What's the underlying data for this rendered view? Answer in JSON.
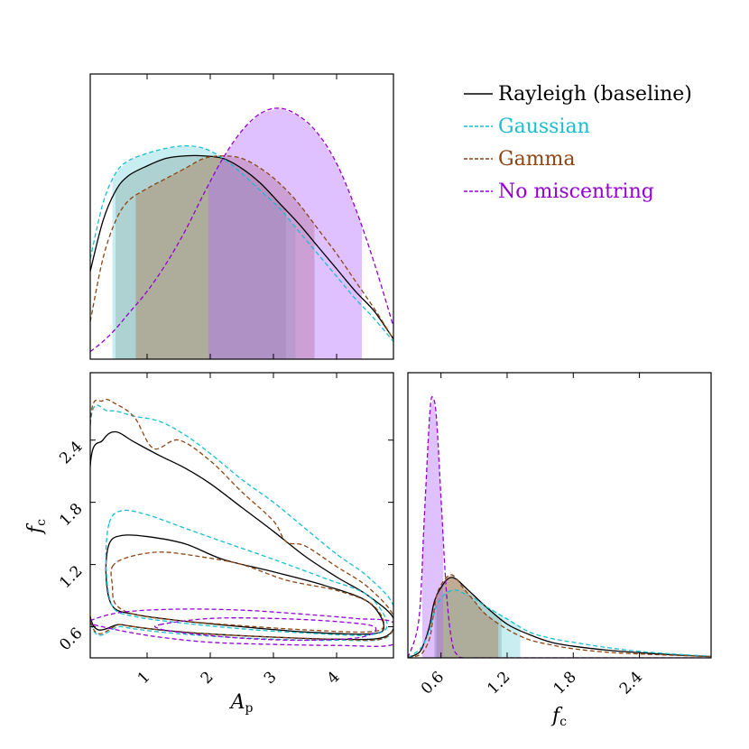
{
  "chart_data": {
    "type": "corner",
    "legend": {
      "placement": "top-right",
      "entries": [
        {
          "name": "Rayleigh (baseline)",
          "color": "#000000",
          "dash": "solid"
        },
        {
          "name": "Gaussian",
          "color": "#17becf",
          "dash": "dashed"
        },
        {
          "name": "Gamma",
          "color": "#8c4513",
          "dash": "dashed"
        },
        {
          "name": "No miscentring",
          "color": "#9400d3",
          "dash": "dashed"
        }
      ]
    },
    "axes": {
      "Ap": {
        "label": "A",
        "label_sub": "p",
        "lim": [
          0.1,
          4.9
        ],
        "ticks": [
          1,
          2,
          3,
          4
        ],
        "tick_labels": [
          "1",
          "2",
          "3",
          "4"
        ]
      },
      "fc": {
        "label": "f",
        "label_sub": "c",
        "lim": [
          0.3,
          3.05
        ],
        "ticks": [
          0.6,
          1.2,
          1.8,
          2.4
        ],
        "tick_labels": [
          "0.6",
          "1.2",
          "1.8",
          "2.4"
        ]
      }
    },
    "marginal_Ap": {
      "x": [
        0.1,
        0.3,
        0.5,
        0.7,
        1.0,
        1.3,
        1.6,
        1.9,
        2.2,
        2.5,
        2.8,
        3.1,
        3.4,
        3.7,
        4.0,
        4.3,
        4.6,
        4.9
      ],
      "series": [
        {
          "name": "Rayleigh (baseline)",
          "y": [
            0.35,
            0.55,
            0.67,
            0.73,
            0.77,
            0.8,
            0.81,
            0.81,
            0.8,
            0.76,
            0.7,
            0.62,
            0.54,
            0.45,
            0.36,
            0.27,
            0.19,
            0.08
          ],
          "hpd": [
            0.5,
            3.2
          ]
        },
        {
          "name": "Gaussian",
          "y": [
            0.4,
            0.62,
            0.74,
            0.79,
            0.82,
            0.84,
            0.85,
            0.84,
            0.8,
            0.74,
            0.67,
            0.6,
            0.51,
            0.42,
            0.33,
            0.24,
            0.16,
            0.07
          ],
          "hpd": [
            0.45,
            3.35
          ]
        },
        {
          "name": "Gamma",
          "y": [
            0.15,
            0.4,
            0.55,
            0.63,
            0.68,
            0.72,
            0.76,
            0.8,
            0.81,
            0.8,
            0.76,
            0.7,
            0.62,
            0.52,
            0.42,
            0.31,
            0.2,
            0.08
          ],
          "hpd": [
            0.82,
            3.65
          ]
        },
        {
          "name": "No miscentring",
          "y": [
            0.03,
            0.07,
            0.12,
            0.18,
            0.27,
            0.38,
            0.51,
            0.66,
            0.8,
            0.91,
            0.98,
            1.0,
            0.97,
            0.9,
            0.78,
            0.6,
            0.38,
            0.13
          ],
          "hpd": [
            1.97,
            4.4
          ]
        }
      ]
    },
    "marginal_fc": {
      "x": [
        0.3,
        0.4,
        0.45,
        0.5,
        0.53,
        0.56,
        0.6,
        0.65,
        0.7,
        0.75,
        0.8,
        0.9,
        1.0,
        1.2,
        1.4,
        1.6,
        1.8,
        2.1,
        2.4,
        2.7,
        3.05
      ],
      "series": [
        {
          "name": "Rayleigh (baseline)",
          "y": [
            0.0,
            0.02,
            0.06,
            0.13,
            0.2,
            0.24,
            0.27,
            0.3,
            0.31,
            0.3,
            0.28,
            0.24,
            0.2,
            0.13,
            0.09,
            0.06,
            0.045,
            0.03,
            0.02,
            0.012,
            0.005
          ],
          "hpd": [
            0.54,
            1.15
          ]
        },
        {
          "name": "Gaussian",
          "y": [
            0.0,
            0.03,
            0.06,
            0.11,
            0.16,
            0.2,
            0.23,
            0.25,
            0.26,
            0.26,
            0.25,
            0.23,
            0.2,
            0.15,
            0.1,
            0.075,
            0.06,
            0.04,
            0.025,
            0.015,
            0.006
          ],
          "hpd": [
            0.55,
            1.32
          ]
        },
        {
          "name": "Gamma",
          "y": [
            0.0,
            0.01,
            0.03,
            0.08,
            0.16,
            0.24,
            0.28,
            0.31,
            0.32,
            0.3,
            0.27,
            0.22,
            0.17,
            0.11,
            0.07,
            0.05,
            0.035,
            0.022,
            0.015,
            0.01,
            0.005
          ],
          "hpd": [
            0.56,
            1.12
          ]
        },
        {
          "name": "No miscentring",
          "y": [
            0.0,
            0.15,
            0.55,
            0.95,
            1.0,
            0.92,
            0.62,
            0.25,
            0.06,
            0.01,
            0.0,
            0.0,
            0.0,
            0.0,
            0.0,
            0.0,
            0.0,
            0.0,
            0.0,
            0.0,
            0.0
          ],
          "hpd": [
            0.43,
            0.62
          ]
        }
      ]
    },
    "joint_contours": [
      {
        "name": "Rayleigh (baseline)",
        "levels": [
          [
            [
              0.1,
              2.15
            ],
            [
              0.3,
              2.4
            ],
            [
              0.5,
              2.48
            ],
            [
              0.8,
              2.38
            ],
            [
              1.2,
              2.25
            ],
            [
              1.6,
              2.13
            ],
            [
              2.0,
              1.98
            ],
            [
              2.5,
              1.75
            ],
            [
              3.0,
              1.52
            ],
            [
              3.5,
              1.28
            ],
            [
              4.0,
              1.08
            ],
            [
              4.5,
              0.9
            ],
            [
              4.9,
              0.68
            ],
            [
              4.75,
              0.5
            ],
            [
              4.0,
              0.48
            ],
            [
              3.0,
              0.5
            ],
            [
              2.0,
              0.53
            ],
            [
              1.2,
              0.57
            ],
            [
              0.6,
              0.62
            ],
            [
              0.1,
              0.7
            ]
          ],
          [
            [
              0.4,
              1.4
            ],
            [
              0.6,
              1.48
            ],
            [
              1.0,
              1.47
            ],
            [
              1.6,
              1.4
            ],
            [
              2.2,
              1.25
            ],
            [
              3.0,
              1.13
            ],
            [
              3.8,
              1.0
            ],
            [
              4.5,
              0.84
            ],
            [
              4.75,
              0.6
            ],
            [
              4.5,
              0.53
            ],
            [
              3.5,
              0.55
            ],
            [
              2.5,
              0.6
            ],
            [
              1.5,
              0.66
            ],
            [
              0.8,
              0.72
            ],
            [
              0.45,
              0.8
            ],
            [
              0.35,
              1.1
            ]
          ]
        ]
      },
      {
        "name": "Gaussian",
        "levels": [
          [
            [
              0.1,
              2.55
            ],
            [
              0.4,
              2.68
            ],
            [
              0.8,
              2.63
            ],
            [
              1.2,
              2.58
            ],
            [
              1.6,
              2.45
            ],
            [
              2.0,
              2.27
            ],
            [
              2.5,
              2.02
            ],
            [
              3.0,
              1.8
            ],
            [
              3.5,
              1.55
            ],
            [
              4.0,
              1.3
            ],
            [
              4.5,
              1.08
            ],
            [
              4.9,
              0.8
            ],
            [
              4.8,
              0.5
            ],
            [
              4.0,
              0.47
            ],
            [
              3.0,
              0.48
            ],
            [
              2.0,
              0.51
            ],
            [
              1.2,
              0.55
            ],
            [
              0.6,
              0.6
            ],
            [
              0.1,
              0.68
            ]
          ],
          [
            [
              0.4,
              1.6
            ],
            [
              0.6,
              1.72
            ],
            [
              1.0,
              1.68
            ],
            [
              1.6,
              1.55
            ],
            [
              2.2,
              1.42
            ],
            [
              3.0,
              1.25
            ],
            [
              3.8,
              1.07
            ],
            [
              4.5,
              0.9
            ],
            [
              4.8,
              0.62
            ],
            [
              4.5,
              0.52
            ],
            [
              3.5,
              0.54
            ],
            [
              2.5,
              0.58
            ],
            [
              1.5,
              0.64
            ],
            [
              0.8,
              0.7
            ],
            [
              0.45,
              0.8
            ],
            [
              0.35,
              1.2
            ]
          ]
        ]
      },
      {
        "name": "Gamma",
        "levels": [
          [
            [
              0.1,
              2.55
            ],
            [
              0.3,
              2.78
            ],
            [
              0.5,
              2.75
            ],
            [
              0.8,
              2.62
            ],
            [
              1.1,
              2.32
            ],
            [
              1.5,
              2.4
            ],
            [
              2.0,
              2.2
            ],
            [
              2.5,
              1.9
            ],
            [
              3.0,
              1.62
            ],
            [
              3.2,
              1.42
            ],
            [
              3.5,
              1.38
            ],
            [
              4.0,
              1.18
            ],
            [
              4.5,
              0.98
            ],
            [
              4.9,
              0.7
            ],
            [
              4.75,
              0.49
            ],
            [
              4.0,
              0.48
            ],
            [
              3.0,
              0.5
            ],
            [
              2.0,
              0.53
            ],
            [
              1.2,
              0.57
            ],
            [
              0.6,
              0.62
            ],
            [
              0.1,
              0.69
            ]
          ],
          [
            [
              0.45,
              1.18
            ],
            [
              0.7,
              1.27
            ],
            [
              1.2,
              1.32
            ],
            [
              1.8,
              1.28
            ],
            [
              2.5,
              1.2
            ],
            [
              3.2,
              1.05
            ],
            [
              4.0,
              0.95
            ],
            [
              4.55,
              0.82
            ],
            [
              4.75,
              0.62
            ],
            [
              4.5,
              0.55
            ],
            [
              3.5,
              0.57
            ],
            [
              2.5,
              0.61
            ],
            [
              1.5,
              0.66
            ],
            [
              0.8,
              0.72
            ],
            [
              0.5,
              0.82
            ],
            [
              0.45,
              1.0
            ]
          ]
        ]
      },
      {
        "name": "No miscentring",
        "levels": [
          [
            [
              0.1,
              0.66
            ],
            [
              0.6,
              0.74
            ],
            [
              1.5,
              0.77
            ],
            [
              2.5,
              0.76
            ],
            [
              3.5,
              0.72
            ],
            [
              4.3,
              0.68
            ],
            [
              4.9,
              0.64
            ],
            [
              4.9,
              0.43
            ],
            [
              4.0,
              0.42
            ],
            [
              3.0,
              0.43
            ],
            [
              2.0,
              0.45
            ],
            [
              1.2,
              0.5
            ],
            [
              0.6,
              0.56
            ],
            [
              0.1,
              0.63
            ]
          ],
          [
            [
              1.2,
              0.62
            ],
            [
              2.0,
              0.68
            ],
            [
              3.0,
              0.68
            ],
            [
              4.0,
              0.65
            ],
            [
              4.6,
              0.6
            ],
            [
              4.4,
              0.5
            ],
            [
              3.5,
              0.47
            ],
            [
              2.5,
              0.49
            ],
            [
              1.6,
              0.54
            ],
            [
              1.2,
              0.58
            ]
          ]
        ]
      }
    ]
  }
}
